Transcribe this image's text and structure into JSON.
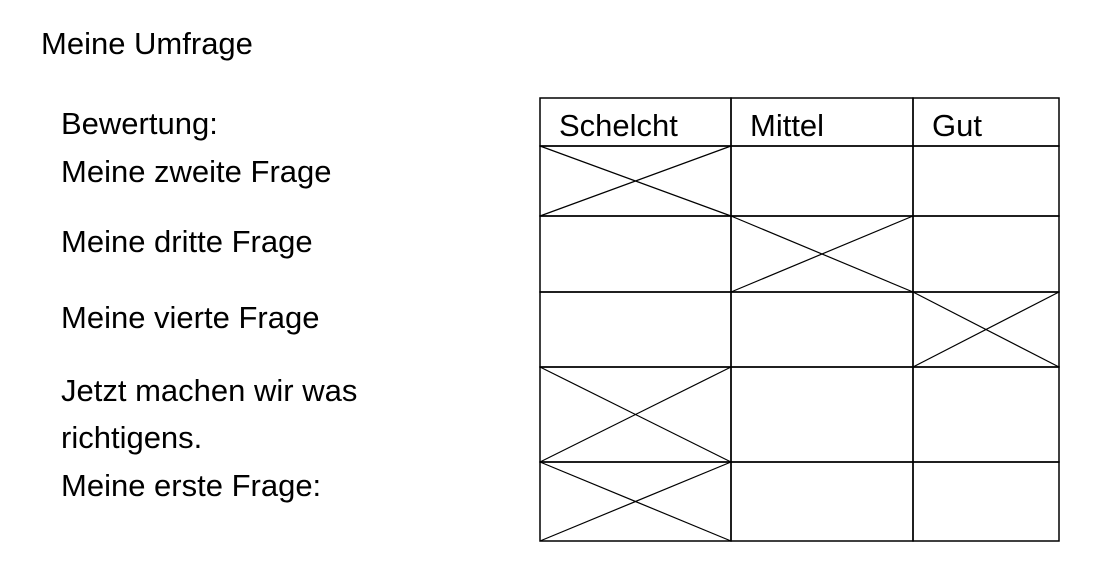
{
  "page": {
    "title": "Meine Umfrage"
  },
  "labels": [
    "Bewertung:",
    "Meine zweite Frage",
    "Meine dritte Frage",
    "Meine vierte Frage",
    "Jetzt machen wir was",
    "richtigens.",
    "Meine erste Frage:"
  ],
  "rating_table": {
    "columns": [
      "Schelcht",
      "Mittel",
      "Gut"
    ],
    "rows": [
      {
        "marked": [
          true,
          false,
          false
        ]
      },
      {
        "marked": [
          false,
          true,
          false
        ]
      },
      {
        "marked": [
          false,
          false,
          true
        ]
      },
      {
        "marked": [
          true,
          false,
          false
        ]
      },
      {
        "marked": [
          true,
          false,
          false
        ]
      }
    ]
  },
  "colors": {
    "line": "#000000",
    "background": "#ffffff"
  }
}
